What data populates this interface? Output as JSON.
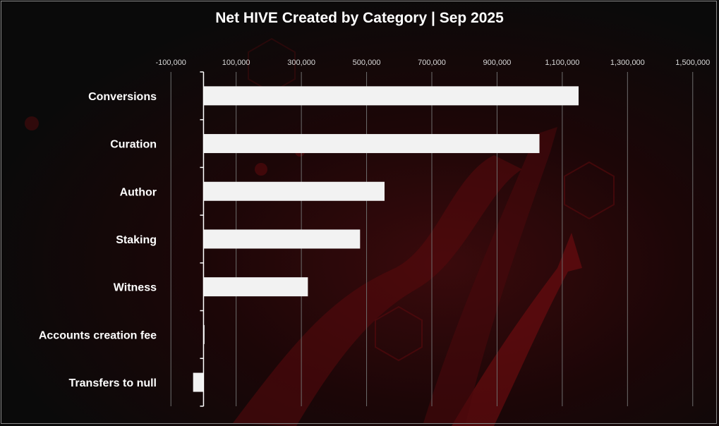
{
  "chart_data": {
    "type": "bar",
    "orientation": "horizontal",
    "title": "Net HIVE Created by Category | Sep 2025",
    "categories": [
      "Conversions",
      "Curation",
      "Author",
      "Staking",
      "Witness",
      "Accounts creation fee",
      "Transfers to null"
    ],
    "values": [
      1150000,
      1030000,
      555000,
      480000,
      320000,
      3000,
      -32000
    ],
    "xlim": [
      -200000,
      1600000
    ],
    "xticks": [
      -100000,
      100000,
      300000,
      500000,
      700000,
      900000,
      1100000,
      1300000,
      1500000
    ],
    "xtick_labels": [
      "-100,000",
      "100,000",
      "300,000",
      "500,000",
      "700,000",
      "900,000",
      "1,100,000",
      "1,300,000",
      "1,500,000"
    ],
    "grid": true,
    "legend": "none"
  },
  "colors": {
    "bar": "#f2f2f2",
    "background": "#0c0c0c",
    "accent": "#8b0f14",
    "gridline": "#6e6e6e"
  }
}
